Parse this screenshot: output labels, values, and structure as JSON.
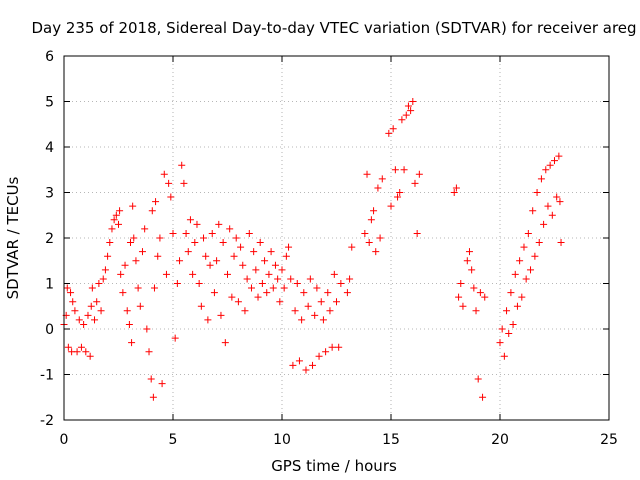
{
  "chart_data": {
    "type": "scatter",
    "title": "Day 235 of 2018, Sidereal Day-to-day VTEC variation (SDTVAR) for receiver areg",
    "xlabel": "GPS time / hours",
    "ylabel": "SDTVAR / TECUs",
    "xlim": [
      0,
      25
    ],
    "ylim": [
      -2,
      6
    ],
    "xticks": [
      "0",
      "5",
      "10",
      "15",
      "20",
      "25"
    ],
    "yticks": [
      "-2",
      "-1",
      "0",
      "1",
      "2",
      "3",
      "4",
      "5",
      "6"
    ],
    "grid": true,
    "marker": "plus",
    "color": "#ff0000",
    "series": [
      {
        "name": "SDTVAR",
        "points": [
          [
            0.0,
            0.1
          ],
          [
            0.1,
            0.3
          ],
          [
            0.15,
            0.9
          ],
          [
            0.2,
            -0.4
          ],
          [
            0.3,
            0.8
          ],
          [
            0.35,
            -0.5
          ],
          [
            0.4,
            0.6
          ],
          [
            0.5,
            0.4
          ],
          [
            0.6,
            -0.5
          ],
          [
            0.7,
            0.2
          ],
          [
            0.8,
            -0.4
          ],
          [
            0.9,
            0.1
          ],
          [
            1.0,
            -0.5
          ],
          [
            1.1,
            0.3
          ],
          [
            1.2,
            -0.6
          ],
          [
            1.25,
            0.5
          ],
          [
            1.3,
            0.9
          ],
          [
            1.4,
            0.2
          ],
          [
            1.5,
            0.6
          ],
          [
            1.6,
            1.0
          ],
          [
            1.7,
            0.4
          ],
          [
            1.8,
            1.1
          ],
          [
            1.9,
            1.3
          ],
          [
            2.0,
            1.6
          ],
          [
            2.1,
            1.9
          ],
          [
            2.2,
            2.2
          ],
          [
            2.3,
            2.4
          ],
          [
            2.4,
            2.5
          ],
          [
            2.5,
            2.3
          ],
          [
            2.55,
            2.6
          ],
          [
            2.6,
            1.2
          ],
          [
            2.7,
            0.8
          ],
          [
            2.8,
            1.4
          ],
          [
            2.9,
            0.4
          ],
          [
            3.0,
            0.1
          ],
          [
            3.05,
            1.9
          ],
          [
            3.1,
            -0.3
          ],
          [
            3.15,
            2.7
          ],
          [
            3.2,
            2.0
          ],
          [
            3.3,
            1.5
          ],
          [
            3.4,
            0.9
          ],
          [
            3.5,
            0.5
          ],
          [
            3.6,
            1.7
          ],
          [
            3.7,
            2.2
          ],
          [
            3.8,
            0.0
          ],
          [
            3.9,
            -0.5
          ],
          [
            4.0,
            -1.1
          ],
          [
            4.05,
            2.6
          ],
          [
            4.1,
            -1.5
          ],
          [
            4.15,
            0.9
          ],
          [
            4.2,
            2.8
          ],
          [
            4.3,
            1.6
          ],
          [
            4.4,
            2.0
          ],
          [
            4.5,
            -1.2
          ],
          [
            4.6,
            3.4
          ],
          [
            4.7,
            1.2
          ],
          [
            4.8,
            3.2
          ],
          [
            4.9,
            2.9
          ],
          [
            5.0,
            2.1
          ],
          [
            5.1,
            -0.2
          ],
          [
            5.2,
            1.0
          ],
          [
            5.3,
            1.5
          ],
          [
            5.4,
            3.6
          ],
          [
            5.5,
            3.2
          ],
          [
            5.6,
            2.1
          ],
          [
            5.7,
            1.7
          ],
          [
            5.8,
            2.4
          ],
          [
            5.9,
            1.2
          ],
          [
            6.0,
            1.9
          ],
          [
            6.1,
            2.3
          ],
          [
            6.2,
            1.0
          ],
          [
            6.3,
            0.5
          ],
          [
            6.4,
            2.0
          ],
          [
            6.5,
            1.6
          ],
          [
            6.6,
            0.2
          ],
          [
            6.7,
            1.4
          ],
          [
            6.8,
            2.1
          ],
          [
            6.9,
            0.8
          ],
          [
            7.0,
            1.5
          ],
          [
            7.1,
            2.3
          ],
          [
            7.2,
            0.3
          ],
          [
            7.3,
            1.9
          ],
          [
            7.4,
            -0.3
          ],
          [
            7.5,
            1.2
          ],
          [
            7.6,
            2.2
          ],
          [
            7.7,
            0.7
          ],
          [
            7.8,
            1.6
          ],
          [
            7.9,
            2.0
          ],
          [
            8.0,
            0.6
          ],
          [
            8.1,
            1.8
          ],
          [
            8.2,
            1.4
          ],
          [
            8.3,
            0.4
          ],
          [
            8.4,
            1.1
          ],
          [
            8.5,
            2.1
          ],
          [
            8.6,
            0.9
          ],
          [
            8.7,
            1.7
          ],
          [
            8.8,
            1.3
          ],
          [
            8.9,
            0.7
          ],
          [
            9.0,
            1.9
          ],
          [
            9.1,
            1.0
          ],
          [
            9.2,
            1.5
          ],
          [
            9.3,
            0.8
          ],
          [
            9.4,
            1.2
          ],
          [
            9.5,
            1.7
          ],
          [
            9.6,
            0.9
          ],
          [
            9.7,
            1.4
          ],
          [
            9.8,
            1.1
          ],
          [
            9.9,
            0.6
          ],
          [
            10.0,
            1.3
          ],
          [
            10.1,
            0.9
          ],
          [
            10.2,
            1.6
          ],
          [
            10.3,
            1.8
          ],
          [
            10.4,
            1.1
          ],
          [
            10.5,
            -0.8
          ],
          [
            10.6,
            0.4
          ],
          [
            10.7,
            1.0
          ],
          [
            10.8,
            -0.7
          ],
          [
            10.9,
            0.2
          ],
          [
            11.0,
            0.8
          ],
          [
            11.1,
            -0.9
          ],
          [
            11.2,
            0.5
          ],
          [
            11.3,
            1.1
          ],
          [
            11.4,
            -0.8
          ],
          [
            11.5,
            0.3
          ],
          [
            11.6,
            0.9
          ],
          [
            11.7,
            -0.6
          ],
          [
            11.8,
            0.6
          ],
          [
            11.9,
            0.2
          ],
          [
            12.0,
            -0.5
          ],
          [
            12.1,
            0.8
          ],
          [
            12.2,
            0.4
          ],
          [
            12.3,
            -0.4
          ],
          [
            12.4,
            1.2
          ],
          [
            12.5,
            0.6
          ],
          [
            12.6,
            -0.4
          ],
          [
            12.7,
            1.0
          ],
          [
            13.0,
            0.8
          ],
          [
            13.1,
            1.1
          ],
          [
            13.2,
            1.8
          ],
          [
            13.8,
            2.1
          ],
          [
            13.9,
            3.4
          ],
          [
            14.0,
            1.9
          ],
          [
            14.1,
            2.4
          ],
          [
            14.2,
            2.6
          ],
          [
            14.3,
            1.7
          ],
          [
            14.4,
            3.1
          ],
          [
            14.5,
            2.0
          ],
          [
            14.6,
            3.3
          ],
          [
            14.9,
            4.3
          ],
          [
            15.0,
            2.7
          ],
          [
            15.1,
            4.4
          ],
          [
            15.2,
            3.5
          ],
          [
            15.3,
            2.9
          ],
          [
            15.4,
            3.0
          ],
          [
            15.5,
            4.6
          ],
          [
            15.6,
            3.5
          ],
          [
            15.7,
            4.7
          ],
          [
            15.8,
            4.9
          ],
          [
            15.9,
            4.8
          ],
          [
            16.0,
            5.0
          ],
          [
            16.1,
            3.2
          ],
          [
            16.2,
            2.1
          ],
          [
            16.3,
            3.4
          ],
          [
            17.9,
            3.0
          ],
          [
            18.0,
            3.1
          ],
          [
            18.1,
            0.7
          ],
          [
            18.2,
            1.0
          ],
          [
            18.3,
            0.5
          ],
          [
            18.5,
            1.5
          ],
          [
            18.6,
            1.7
          ],
          [
            18.7,
            1.3
          ],
          [
            18.8,
            0.9
          ],
          [
            18.9,
            0.4
          ],
          [
            19.0,
            -1.1
          ],
          [
            19.1,
            0.8
          ],
          [
            19.2,
            -1.5
          ],
          [
            19.3,
            0.7
          ],
          [
            20.0,
            -0.3
          ],
          [
            20.1,
            0.0
          ],
          [
            20.2,
            -0.6
          ],
          [
            20.3,
            0.4
          ],
          [
            20.4,
            -0.1
          ],
          [
            20.5,
            0.8
          ],
          [
            20.6,
            0.1
          ],
          [
            20.7,
            1.2
          ],
          [
            20.8,
            0.5
          ],
          [
            20.9,
            1.5
          ],
          [
            21.0,
            0.7
          ],
          [
            21.1,
            1.8
          ],
          [
            21.2,
            1.1
          ],
          [
            21.3,
            2.1
          ],
          [
            21.4,
            1.3
          ],
          [
            21.5,
            2.6
          ],
          [
            21.6,
            1.6
          ],
          [
            21.7,
            3.0
          ],
          [
            21.8,
            1.9
          ],
          [
            21.9,
            3.3
          ],
          [
            22.0,
            2.3
          ],
          [
            22.1,
            3.5
          ],
          [
            22.2,
            2.7
          ],
          [
            22.3,
            3.6
          ],
          [
            22.4,
            2.5
          ],
          [
            22.5,
            3.7
          ],
          [
            22.6,
            2.9
          ],
          [
            22.7,
            3.8
          ],
          [
            22.75,
            2.8
          ],
          [
            22.8,
            1.9
          ]
        ]
      }
    ]
  }
}
